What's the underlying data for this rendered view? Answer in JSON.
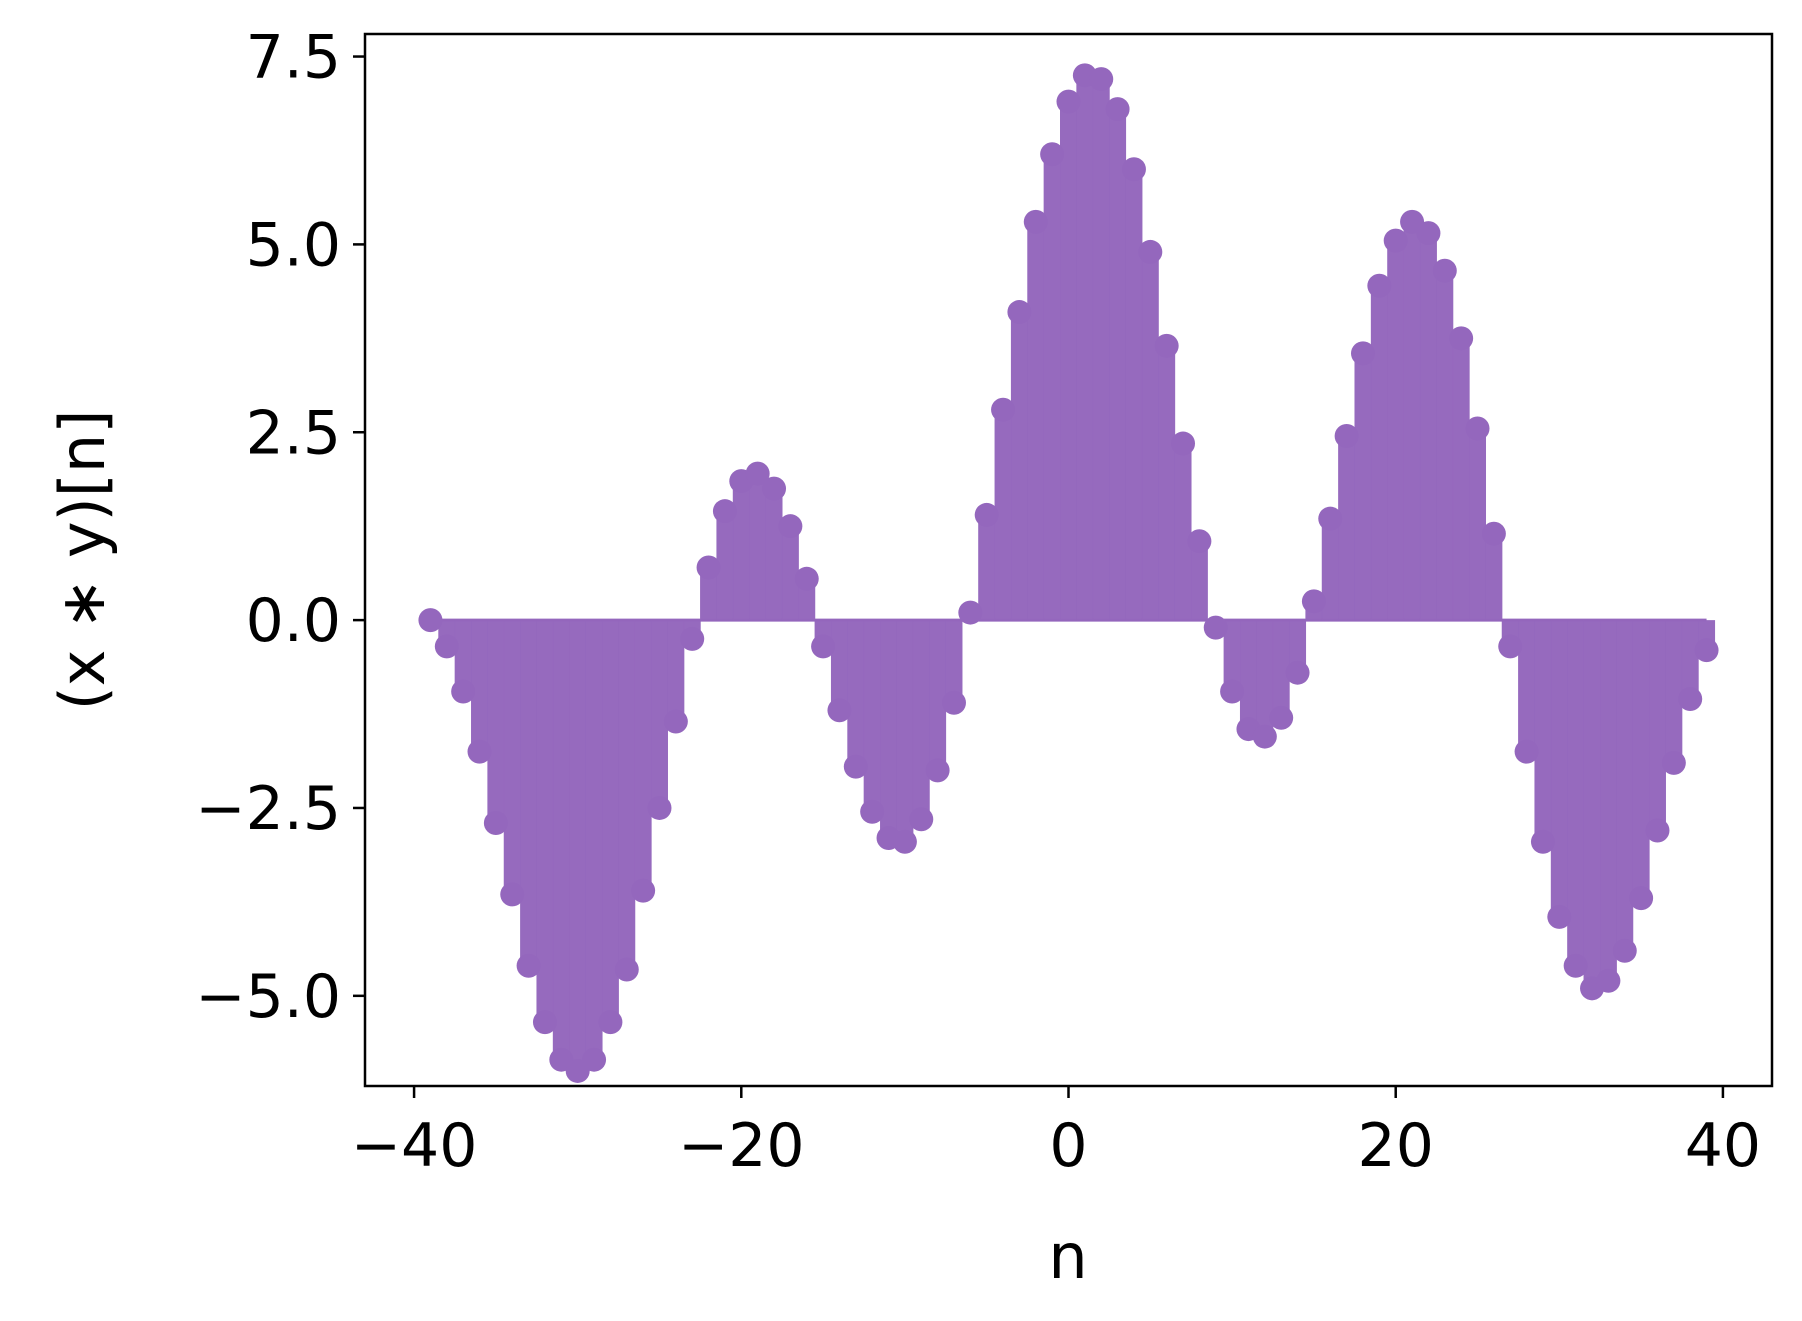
{
  "chart_data": {
    "type": "stem",
    "title": "",
    "xlabel": "n",
    "ylabel": "(x ∗ y)[n]",
    "xlim": [
      -43,
      43
    ],
    "ylim": [
      -6.2,
      7.8
    ],
    "xticks": [
      -40,
      -20,
      0,
      20,
      40
    ],
    "xtick_labels": [
      "−40",
      "−20",
      "0",
      "20",
      "40"
    ],
    "yticks": [
      -5.0,
      -2.5,
      0.0,
      2.5,
      5.0,
      7.5
    ],
    "ytick_labels": [
      "−5.0",
      "−2.5",
      "0.0",
      "2.5",
      "5.0",
      "7.5"
    ],
    "grid": false,
    "series": [
      {
        "color": "#9467bd",
        "x": [
          -39,
          -38,
          -37,
          -36,
          -35,
          -34,
          -33,
          -32,
          -31,
          -30,
          -29,
          -28,
          -27,
          -26,
          -25,
          -24,
          -23,
          -22,
          -21,
          -20,
          -19,
          -18,
          -17,
          -16,
          -15,
          -14,
          -13,
          -12,
          -11,
          -10,
          -9,
          -8,
          -7,
          -6,
          -5,
          -4,
          -3,
          -2,
          -1,
          0,
          1,
          2,
          3,
          4,
          5,
          6,
          7,
          8,
          9,
          10,
          11,
          12,
          13,
          14,
          15,
          16,
          17,
          18,
          19,
          20,
          21,
          22,
          23,
          24,
          25,
          26,
          27,
          28,
          29,
          30,
          31,
          32,
          33,
          34,
          35,
          36,
          37,
          38,
          39
        ],
        "y": [
          0.0,
          -0.35,
          -0.95,
          -1.75,
          -2.7,
          -3.65,
          -4.6,
          -5.35,
          -5.85,
          -6.0,
          -5.85,
          -5.35,
          -4.65,
          -3.6,
          -2.5,
          -1.35,
          -0.25,
          0.7,
          1.45,
          1.85,
          1.95,
          1.75,
          1.25,
          0.55,
          -0.35,
          -1.2,
          -1.95,
          -2.55,
          -2.9,
          -2.95,
          -2.65,
          -2.0,
          -1.1,
          0.1,
          1.4,
          2.8,
          4.1,
          5.3,
          6.2,
          6.9,
          7.25,
          7.2,
          6.8,
          6.0,
          4.9,
          3.65,
          2.35,
          1.05,
          -0.1,
          -0.95,
          -1.45,
          -1.55,
          -1.3,
          -0.7,
          0.25,
          1.35,
          2.45,
          3.55,
          4.45,
          5.05,
          5.3,
          5.15,
          4.65,
          3.75,
          2.55,
          1.15,
          -0.35,
          -1.75,
          -2.95,
          -3.95,
          -4.6,
          -4.9,
          -4.8,
          -4.4,
          -3.7,
          -2.8,
          -1.9,
          -1.05,
          -0.4
        ]
      }
    ]
  }
}
